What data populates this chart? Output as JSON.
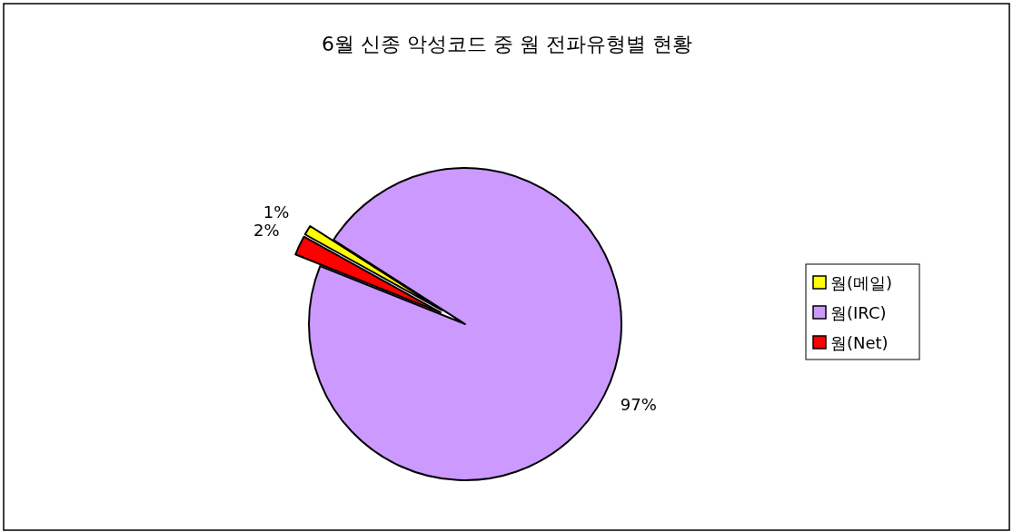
{
  "chart_data": {
    "type": "pie",
    "title": "6월 신종 악성코드 중 웜 전파유형별 현황",
    "categories": [
      "웜(메일)",
      "웜(IRC)",
      "웜(Net)"
    ],
    "values": [
      1,
      97,
      2
    ],
    "colors": [
      "#ffff00",
      "#cc99ff",
      "#ff0000"
    ],
    "value_labels": [
      "1%",
      "97%",
      "2%"
    ],
    "legend": "right",
    "data_labels": true
  }
}
